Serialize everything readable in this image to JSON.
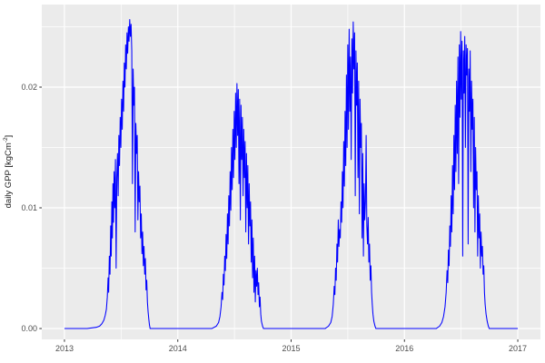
{
  "figure": {
    "background": "#FFFFFF",
    "panel_background": "#EBEBEB",
    "grid_color": "#FFFFFF",
    "axis_text_color": "#4D4D4D",
    "tick_mark_color": "#333333"
  },
  "chart_data": {
    "type": "line",
    "title": "",
    "xlabel": "",
    "ylabel": "daily GPP [kgCm^-2]",
    "ylabel_parts": {
      "prefix": "daily GPP [kgCm",
      "superscript": "-2",
      "suffix": "]"
    },
    "legend": "none",
    "grid": true,
    "xlim": [
      2012.8,
      2017.2
    ],
    "ylim": [
      -0.0009,
      0.02684
    ],
    "x_ticks": [
      2013,
      2014,
      2015,
      2016,
      2017
    ],
    "x_tick_labels": [
      "2013",
      "2014",
      "2015",
      "2016",
      "2017"
    ],
    "x_minor": [
      2013.5,
      2014.5,
      2015.5,
      2016.5
    ],
    "y_ticks": [
      0,
      0.01,
      0.02
    ],
    "y_tick_labels": [
      "0.00",
      "0.01",
      "0.02"
    ],
    "y_minor": [
      0.005,
      0.015,
      0.025
    ],
    "series": [
      {
        "name": "daily GPP",
        "color": "#0000FF",
        "points": [
          [
            2013.0,
            0
          ],
          [
            2013.1,
            0
          ],
          [
            2013.2,
            0
          ],
          [
            2013.28,
            0.0001
          ],
          [
            2013.31,
            0.0002
          ],
          [
            2013.33,
            0.0004
          ],
          [
            2013.348,
            0.0007
          ],
          [
            2013.36,
            0.0011
          ],
          [
            2013.37,
            0.0016
          ],
          [
            2013.378,
            0.0026
          ],
          [
            2013.385,
            0.0042
          ],
          [
            2013.39,
            0.003
          ],
          [
            2013.396,
            0.006
          ],
          [
            2013.402,
            0.0045
          ],
          [
            2013.408,
            0.0085
          ],
          [
            2013.413,
            0.006
          ],
          [
            2013.418,
            0.0105
          ],
          [
            2013.423,
            0.0075
          ],
          [
            2013.428,
            0.012
          ],
          [
            2013.433,
            0.0088
          ],
          [
            2013.438,
            0.013
          ],
          [
            2013.444,
            0.01
          ],
          [
            2013.45,
            0.014
          ],
          [
            2013.456,
            0.005
          ],
          [
            2013.462,
            0.0125
          ],
          [
            2013.468,
            0.0145
          ],
          [
            2013.474,
            0.011
          ],
          [
            2013.48,
            0.016
          ],
          [
            2013.486,
            0.0135
          ],
          [
            2013.492,
            0.0175
          ],
          [
            2013.498,
            0.015
          ],
          [
            2013.504,
            0.019
          ],
          [
            2013.51,
            0.0165
          ],
          [
            2013.516,
            0.0205
          ],
          [
            2013.522,
            0.018
          ],
          [
            2013.528,
            0.022
          ],
          [
            2013.534,
            0.02
          ],
          [
            2013.54,
            0.0235
          ],
          [
            2013.546,
            0.0215
          ],
          [
            2013.552,
            0.0245
          ],
          [
            2013.558,
            0.0228
          ],
          [
            2013.564,
            0.025
          ],
          [
            2013.57,
            0.0238
          ],
          [
            2013.576,
            0.0256
          ],
          [
            2013.582,
            0.0242
          ],
          [
            2013.588,
            0.0252
          ],
          [
            2013.594,
            0.023
          ],
          [
            2013.6,
            0.012
          ],
          [
            2013.606,
            0.0215
          ],
          [
            2013.612,
            0.0185
          ],
          [
            2013.618,
            0.02
          ],
          [
            2013.624,
            0.008
          ],
          [
            2013.63,
            0.017
          ],
          [
            2013.636,
            0.0145
          ],
          [
            2013.642,
            0.016
          ],
          [
            2013.648,
            0.009
          ],
          [
            2013.654,
            0.013
          ],
          [
            2013.66,
            0.0105
          ],
          [
            2013.666,
            0.0118
          ],
          [
            2013.672,
            0.0075
          ],
          [
            2013.678,
            0.0095
          ],
          [
            2013.684,
            0.0062
          ],
          [
            2013.69,
            0.008
          ],
          [
            2013.696,
            0.0052
          ],
          [
            2013.702,
            0.0068
          ],
          [
            2013.708,
            0.0045
          ],
          [
            2013.714,
            0.0058
          ],
          [
            2013.72,
            0.0032
          ],
          [
            2013.726,
            0.004
          ],
          [
            2013.732,
            0.0022
          ],
          [
            2013.738,
            0.0014
          ],
          [
            2013.744,
            0.0008
          ],
          [
            2013.75,
            0.0003
          ],
          [
            2013.756,
            0
          ],
          [
            2013.85,
            0
          ],
          [
            2013.95,
            0
          ],
          [
            2014.05,
            0
          ],
          [
            2014.2,
            0
          ],
          [
            2014.3,
            0
          ],
          [
            2014.34,
            0.0002
          ],
          [
            2014.36,
            0.0005
          ],
          [
            2014.372,
            0.001
          ],
          [
            2014.382,
            0.0018
          ],
          [
            2014.39,
            0.003
          ],
          [
            2014.396,
            0.0024
          ],
          [
            2014.402,
            0.0045
          ],
          [
            2014.408,
            0.0036
          ],
          [
            2014.414,
            0.006
          ],
          [
            2014.42,
            0.0048
          ],
          [
            2014.426,
            0.0078
          ],
          [
            2014.432,
            0.0058
          ],
          [
            2014.438,
            0.0095
          ],
          [
            2014.444,
            0.007
          ],
          [
            2014.45,
            0.011
          ],
          [
            2014.456,
            0.0085
          ],
          [
            2014.462,
            0.013
          ],
          [
            2014.468,
            0.0098
          ],
          [
            2014.474,
            0.015
          ],
          [
            2014.48,
            0.0115
          ],
          [
            2014.486,
            0.0165
          ],
          [
            2014.492,
            0.0125
          ],
          [
            2014.498,
            0.018
          ],
          [
            2014.504,
            0.014
          ],
          [
            2014.51,
            0.0195
          ],
          [
            2014.516,
            0.015
          ],
          [
            2014.522,
            0.0203
          ],
          [
            2014.528,
            0.016
          ],
          [
            2014.534,
            0.0198
          ],
          [
            2014.54,
            0.012
          ],
          [
            2014.546,
            0.019
          ],
          [
            2014.552,
            0.009
          ],
          [
            2014.558,
            0.0185
          ],
          [
            2014.564,
            0.014
          ],
          [
            2014.57,
            0.0175
          ],
          [
            2014.576,
            0.011
          ],
          [
            2014.582,
            0.0165
          ],
          [
            2014.588,
            0.0125
          ],
          [
            2014.594,
            0.0155
          ],
          [
            2014.6,
            0.008
          ],
          [
            2014.606,
            0.0145
          ],
          [
            2014.612,
            0.01
          ],
          [
            2014.618,
            0.0135
          ],
          [
            2014.624,
            0.007
          ],
          [
            2014.63,
            0.012
          ],
          [
            2014.636,
            0.0085
          ],
          [
            2014.642,
            0.0105
          ],
          [
            2014.648,
            0.0055
          ],
          [
            2014.654,
            0.009
          ],
          [
            2014.66,
            0.0042
          ],
          [
            2014.666,
            0.0075
          ],
          [
            2014.672,
            0.003
          ],
          [
            2014.678,
            0.006
          ],
          [
            2014.684,
            0.0022
          ],
          [
            2014.69,
            0.0048
          ],
          [
            2014.696,
            0.0035
          ],
          [
            2014.702,
            0.005
          ],
          [
            2014.708,
            0.0028
          ],
          [
            2014.714,
            0.0038
          ],
          [
            2014.72,
            0.0018
          ],
          [
            2014.726,
            0.0026
          ],
          [
            2014.732,
            0.0012
          ],
          [
            2014.738,
            0.0006
          ],
          [
            2014.748,
            0.0002
          ],
          [
            2014.756,
            0
          ],
          [
            2014.85,
            0
          ],
          [
            2014.95,
            0
          ],
          [
            2015.05,
            0
          ],
          [
            2015.2,
            0
          ],
          [
            2015.3,
            0
          ],
          [
            2015.33,
            0.0002
          ],
          [
            2015.35,
            0.0005
          ],
          [
            2015.362,
            0.001
          ],
          [
            2015.372,
            0.002
          ],
          [
            2015.38,
            0.0035
          ],
          [
            2015.386,
            0.0028
          ],
          [
            2015.392,
            0.005
          ],
          [
            2015.398,
            0.004
          ],
          [
            2015.404,
            0.007
          ],
          [
            2015.41,
            0.0055
          ],
          [
            2015.416,
            0.009
          ],
          [
            2015.422,
            0.0068
          ],
          [
            2015.428,
            0.0082
          ],
          [
            2015.434,
            0.0075
          ],
          [
            2015.44,
            0.0105
          ],
          [
            2015.446,
            0.0088
          ],
          [
            2015.452,
            0.013
          ],
          [
            2015.458,
            0.01
          ],
          [
            2015.464,
            0.0155
          ],
          [
            2015.47,
            0.0118
          ],
          [
            2015.476,
            0.018
          ],
          [
            2015.482,
            0.0135
          ],
          [
            2015.488,
            0.021
          ],
          [
            2015.494,
            0.015
          ],
          [
            2015.5,
            0.0235
          ],
          [
            2015.506,
            0.0165
          ],
          [
            2015.512,
            0.0248
          ],
          [
            2015.518,
            0.018
          ],
          [
            2015.524,
            0.0225
          ],
          [
            2015.53,
            0.014
          ],
          [
            2015.536,
            0.024
          ],
          [
            2015.542,
            0.0195
          ],
          [
            2015.548,
            0.0254
          ],
          [
            2015.554,
            0.0215
          ],
          [
            2015.56,
            0.0245
          ],
          [
            2015.566,
            0.011
          ],
          [
            2015.572,
            0.023
          ],
          [
            2015.578,
            0.0185
          ],
          [
            2015.584,
            0.022
          ],
          [
            2015.59,
            0.0125
          ],
          [
            2015.596,
            0.0205
          ],
          [
            2015.602,
            0.0095
          ],
          [
            2015.608,
            0.019
          ],
          [
            2015.614,
            0.015
          ],
          [
            2015.62,
            0.017
          ],
          [
            2015.626,
            0.0075
          ],
          [
            2015.632,
            0.0145
          ],
          [
            2015.638,
            0.006
          ],
          [
            2015.644,
            0.012
          ],
          [
            2015.65,
            0.009
          ],
          [
            2015.656,
            0.0105
          ],
          [
            2015.662,
            0.016
          ],
          [
            2015.668,
            0.0085
          ],
          [
            2015.674,
            0.007
          ],
          [
            2015.68,
            0.0092
          ],
          [
            2015.686,
            0.0055
          ],
          [
            2015.692,
            0.007
          ],
          [
            2015.698,
            0.004
          ],
          [
            2015.704,
            0.0052
          ],
          [
            2015.71,
            0.003
          ],
          [
            2015.716,
            0.002
          ],
          [
            2015.722,
            0.0012
          ],
          [
            2015.73,
            0.0006
          ],
          [
            2015.74,
            0.0002
          ],
          [
            2015.748,
            0
          ],
          [
            2015.85,
            0
          ],
          [
            2015.95,
            0
          ],
          [
            2016.05,
            0
          ],
          [
            2016.2,
            0
          ],
          [
            2016.28,
            0
          ],
          [
            2016.31,
            0.0002
          ],
          [
            2016.33,
            0.0005
          ],
          [
            2016.345,
            0.001
          ],
          [
            2016.358,
            0.0018
          ],
          [
            2016.368,
            0.003
          ],
          [
            2016.376,
            0.0048
          ],
          [
            2016.382,
            0.0038
          ],
          [
            2016.388,
            0.0065
          ],
          [
            2016.394,
            0.0052
          ],
          [
            2016.4,
            0.0085
          ],
          [
            2016.406,
            0.0068
          ],
          [
            2016.412,
            0.011
          ],
          [
            2016.418,
            0.008
          ],
          [
            2016.424,
            0.0135
          ],
          [
            2016.43,
            0.0095
          ],
          [
            2016.436,
            0.016
          ],
          [
            2016.442,
            0.0115
          ],
          [
            2016.448,
            0.0185
          ],
          [
            2016.454,
            0.013
          ],
          [
            2016.46,
            0.0205
          ],
          [
            2016.466,
            0.0145
          ],
          [
            2016.472,
            0.0225
          ],
          [
            2016.478,
            0.012
          ],
          [
            2016.484,
            0.0235
          ],
          [
            2016.49,
            0.0175
          ],
          [
            2016.496,
            0.0246
          ],
          [
            2016.502,
            0.019
          ],
          [
            2016.508,
            0.0238
          ],
          [
            2016.514,
            0.006
          ],
          [
            2016.52,
            0.023
          ],
          [
            2016.526,
            0.0195
          ],
          [
            2016.532,
            0.0242
          ],
          [
            2016.538,
            0.015
          ],
          [
            2016.544,
            0.0235
          ],
          [
            2016.55,
            0.021
          ],
          [
            2016.556,
            0.0232
          ],
          [
            2016.562,
            0.007
          ],
          [
            2016.568,
            0.0215
          ],
          [
            2016.574,
            0.018
          ],
          [
            2016.58,
            0.023
          ],
          [
            2016.586,
            0.013
          ],
          [
            2016.592,
            0.0205
          ],
          [
            2016.598,
            0.0165
          ],
          [
            2016.604,
            0.019
          ],
          [
            2016.61,
            0.01
          ],
          [
            2016.616,
            0.0175
          ],
          [
            2016.622,
            0.008
          ],
          [
            2016.628,
            0.015
          ],
          [
            2016.634,
            0.0115
          ],
          [
            2016.64,
            0.013
          ],
          [
            2016.646,
            0.006
          ],
          [
            2016.652,
            0.011
          ],
          [
            2016.658,
            0.0075
          ],
          [
            2016.664,
            0.0095
          ],
          [
            2016.67,
            0.005
          ],
          [
            2016.676,
            0.008
          ],
          [
            2016.682,
            0.006
          ],
          [
            2016.688,
            0.0068
          ],
          [
            2016.694,
            0.0045
          ],
          [
            2016.7,
            0.0052
          ],
          [
            2016.706,
            0.003
          ],
          [
            2016.712,
            0.002
          ],
          [
            2016.72,
            0.0012
          ],
          [
            2016.73,
            0.0006
          ],
          [
            2016.74,
            0.0002
          ],
          [
            2016.748,
            0
          ],
          [
            2016.85,
            0
          ],
          [
            2016.95,
            0
          ],
          [
            2017.0,
            0
          ]
        ]
      }
    ]
  }
}
